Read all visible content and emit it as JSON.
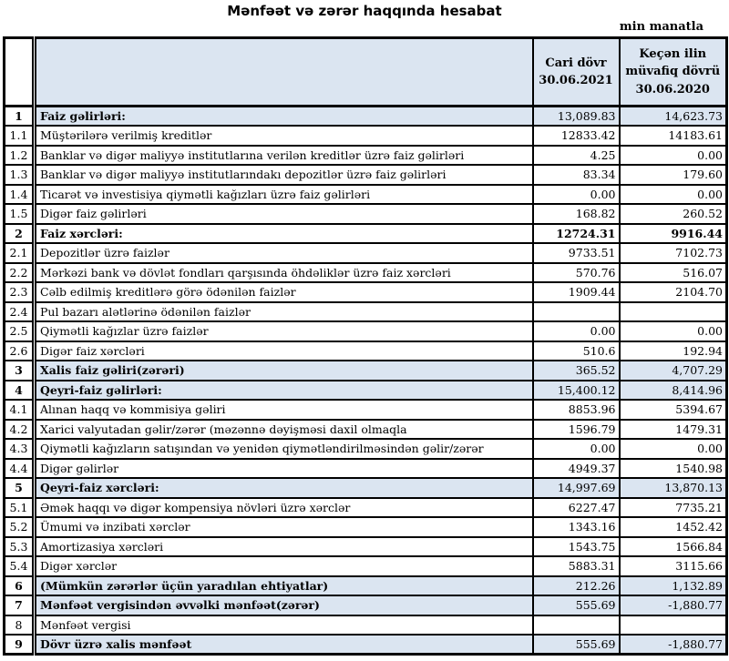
{
  "title": "Mənfəət və zərər haqqında hesabat",
  "unit_note": "min manatla",
  "colors": {
    "highlight_bg": "#dbe5f1",
    "border": "#000000",
    "text": "#000000"
  },
  "table": {
    "header": {
      "number_col": "",
      "description_col": "",
      "current": [
        "Cari dövr",
        "30.06.2021"
      ],
      "previous": [
        "Keçən ilin",
        "müvafiq dövrü",
        "30.06.2020"
      ]
    },
    "rows": [
      {
        "num": "1",
        "label": "Faiz gəlirləri:",
        "current": "13,089.83",
        "previous": "14,623.73",
        "highlight": true,
        "bold": true,
        "bold_values": false
      },
      {
        "num": "1.1",
        "label": "Müştərilərə verilmiş kreditlər",
        "current": "12833.42",
        "previous": "14183.61",
        "highlight": false,
        "bold": false,
        "bold_values": false
      },
      {
        "num": "1.2",
        "label": "Banklar və digər maliyyə institutlarına verilən kreditlər üzrə faiz gəlirləri",
        "current": "4.25",
        "previous": "0.00",
        "highlight": false,
        "bold": false,
        "bold_values": false
      },
      {
        "num": "1.3",
        "label": "Banklar və digər maliyyə institutlarındakı depozitlər üzrə faiz gəlirləri",
        "current": "83.34",
        "previous": "179.60",
        "highlight": false,
        "bold": false,
        "bold_values": false
      },
      {
        "num": "1.4",
        "label": "Ticarət və investisiya qiymətli kağızları üzrə faiz gəlirləri",
        "current": "0.00",
        "previous": "0.00",
        "highlight": false,
        "bold": false,
        "bold_values": false
      },
      {
        "num": "1.5",
        "label": "Digər faiz gəlirləri",
        "current": "168.82",
        "previous": "260.52",
        "highlight": false,
        "bold": false,
        "bold_values": false
      },
      {
        "num": "2",
        "label": "Faiz xərcləri:",
        "current": "12724.31",
        "previous": "9916.44",
        "highlight": false,
        "bold": true,
        "bold_values": true
      },
      {
        "num": "2.1",
        "label": "Depozitlər üzrə faizlər",
        "current": "9733.51",
        "previous": "7102.73",
        "highlight": false,
        "bold": false,
        "bold_values": false
      },
      {
        "num": "2.2",
        "label": "Mərkəzi bank və dövlət fondları qarşısında öhdəliklər üzrə faiz xərcləri",
        "current": "570.76",
        "previous": "516.07",
        "highlight": false,
        "bold": false,
        "bold_values": false
      },
      {
        "num": "2.3",
        "label": "Cəlb edilmiş kreditlərə görə ödənilən faizlər",
        "current": "1909.44",
        "previous": "2104.70",
        "highlight": false,
        "bold": false,
        "bold_values": false
      },
      {
        "num": "2.4",
        "label": "Pul bazarı alətlərinə ödənilən faizlər",
        "current": "",
        "previous": "",
        "highlight": false,
        "bold": false,
        "bold_values": false
      },
      {
        "num": "2.5",
        "label": "Qiymətli kağızlar üzrə faizlər",
        "current": "0.00",
        "previous": "0.00",
        "highlight": false,
        "bold": false,
        "bold_values": false
      },
      {
        "num": "2.6",
        "label": "Digər faiz xərcləri",
        "current": "510.6",
        "previous": "192.94",
        "highlight": false,
        "bold": false,
        "bold_values": false
      },
      {
        "num": "3",
        "label": "Xalis faiz gəliri(zərəri)",
        "current": "365.52",
        "previous": "4,707.29",
        "highlight": true,
        "bold": true,
        "bold_values": false
      },
      {
        "num": "4",
        "label": "Qeyri-faiz gəlirləri:",
        "current": "15,400.12",
        "previous": "8,414.96",
        "highlight": true,
        "bold": true,
        "bold_values": false
      },
      {
        "num": "4.1",
        "label": "Alınan haqq və kommisiya gəliri",
        "current": "8853.96",
        "previous": "5394.67",
        "highlight": false,
        "bold": false,
        "bold_values": false
      },
      {
        "num": "4.2",
        "label": "Xarici valyutadan gəlir/zərər (məzənnə dəyişməsi daxil olmaqla",
        "current": "1596.79",
        "previous": "1479.31",
        "highlight": false,
        "bold": false,
        "bold_values": false
      },
      {
        "num": "4.3",
        "label": "Qiymətli kağızların satışından və yenidən qiymətləndirilməsindən gəlir/zərər",
        "current": "0.00",
        "previous": "0.00",
        "highlight": false,
        "bold": false,
        "bold_values": false
      },
      {
        "num": "4.4",
        "label": "Digər gəlirlər",
        "current": "4949.37",
        "previous": "1540.98",
        "highlight": false,
        "bold": false,
        "bold_values": false
      },
      {
        "num": "5",
        "label": "Qeyri-faiz xərcləri:",
        "current": "14,997.69",
        "previous": "13,870.13",
        "highlight": true,
        "bold": true,
        "bold_values": false
      },
      {
        "num": "5.1",
        "label": "Əmək haqqı və digər kompensiya növləri üzrə xərclər",
        "current": "6227.47",
        "previous": "7735.21",
        "highlight": false,
        "bold": false,
        "bold_values": false
      },
      {
        "num": "5.2",
        "label": "Ümumi və inzibati xərclər",
        "current": "1343.16",
        "previous": "1452.42",
        "highlight": false,
        "bold": false,
        "bold_values": false
      },
      {
        "num": "5.3",
        "label": "Amortizasiya xərcləri",
        "current": "1543.75",
        "previous": "1566.84",
        "highlight": false,
        "bold": false,
        "bold_values": false
      },
      {
        "num": "5.4",
        "label": "Digər xərclər",
        "current": "5883.31",
        "previous": "3115.66",
        "highlight": false,
        "bold": false,
        "bold_values": false
      },
      {
        "num": "6",
        "label": "(Mümkün zərərlər üçün yaradılan ehtiyatlar)",
        "current": "212.26",
        "previous": "1,132.89",
        "highlight": true,
        "bold": true,
        "bold_values": false
      },
      {
        "num": "7",
        "label": "Mənfəət vergisindən əvvəlki mənfəət(zərər)",
        "current": "555.69",
        "previous": "-1,880.77",
        "highlight": true,
        "bold": true,
        "bold_values": false
      },
      {
        "num": "8",
        "label": "Mənfəət vergisi",
        "current": "",
        "previous": "",
        "highlight": false,
        "bold": false,
        "bold_values": false
      },
      {
        "num": "9",
        "label": "Dövr üzrə xalis mənfəət",
        "current": "555.69",
        "previous": "-1,880.77",
        "highlight": true,
        "bold": true,
        "bold_values": false
      }
    ]
  }
}
